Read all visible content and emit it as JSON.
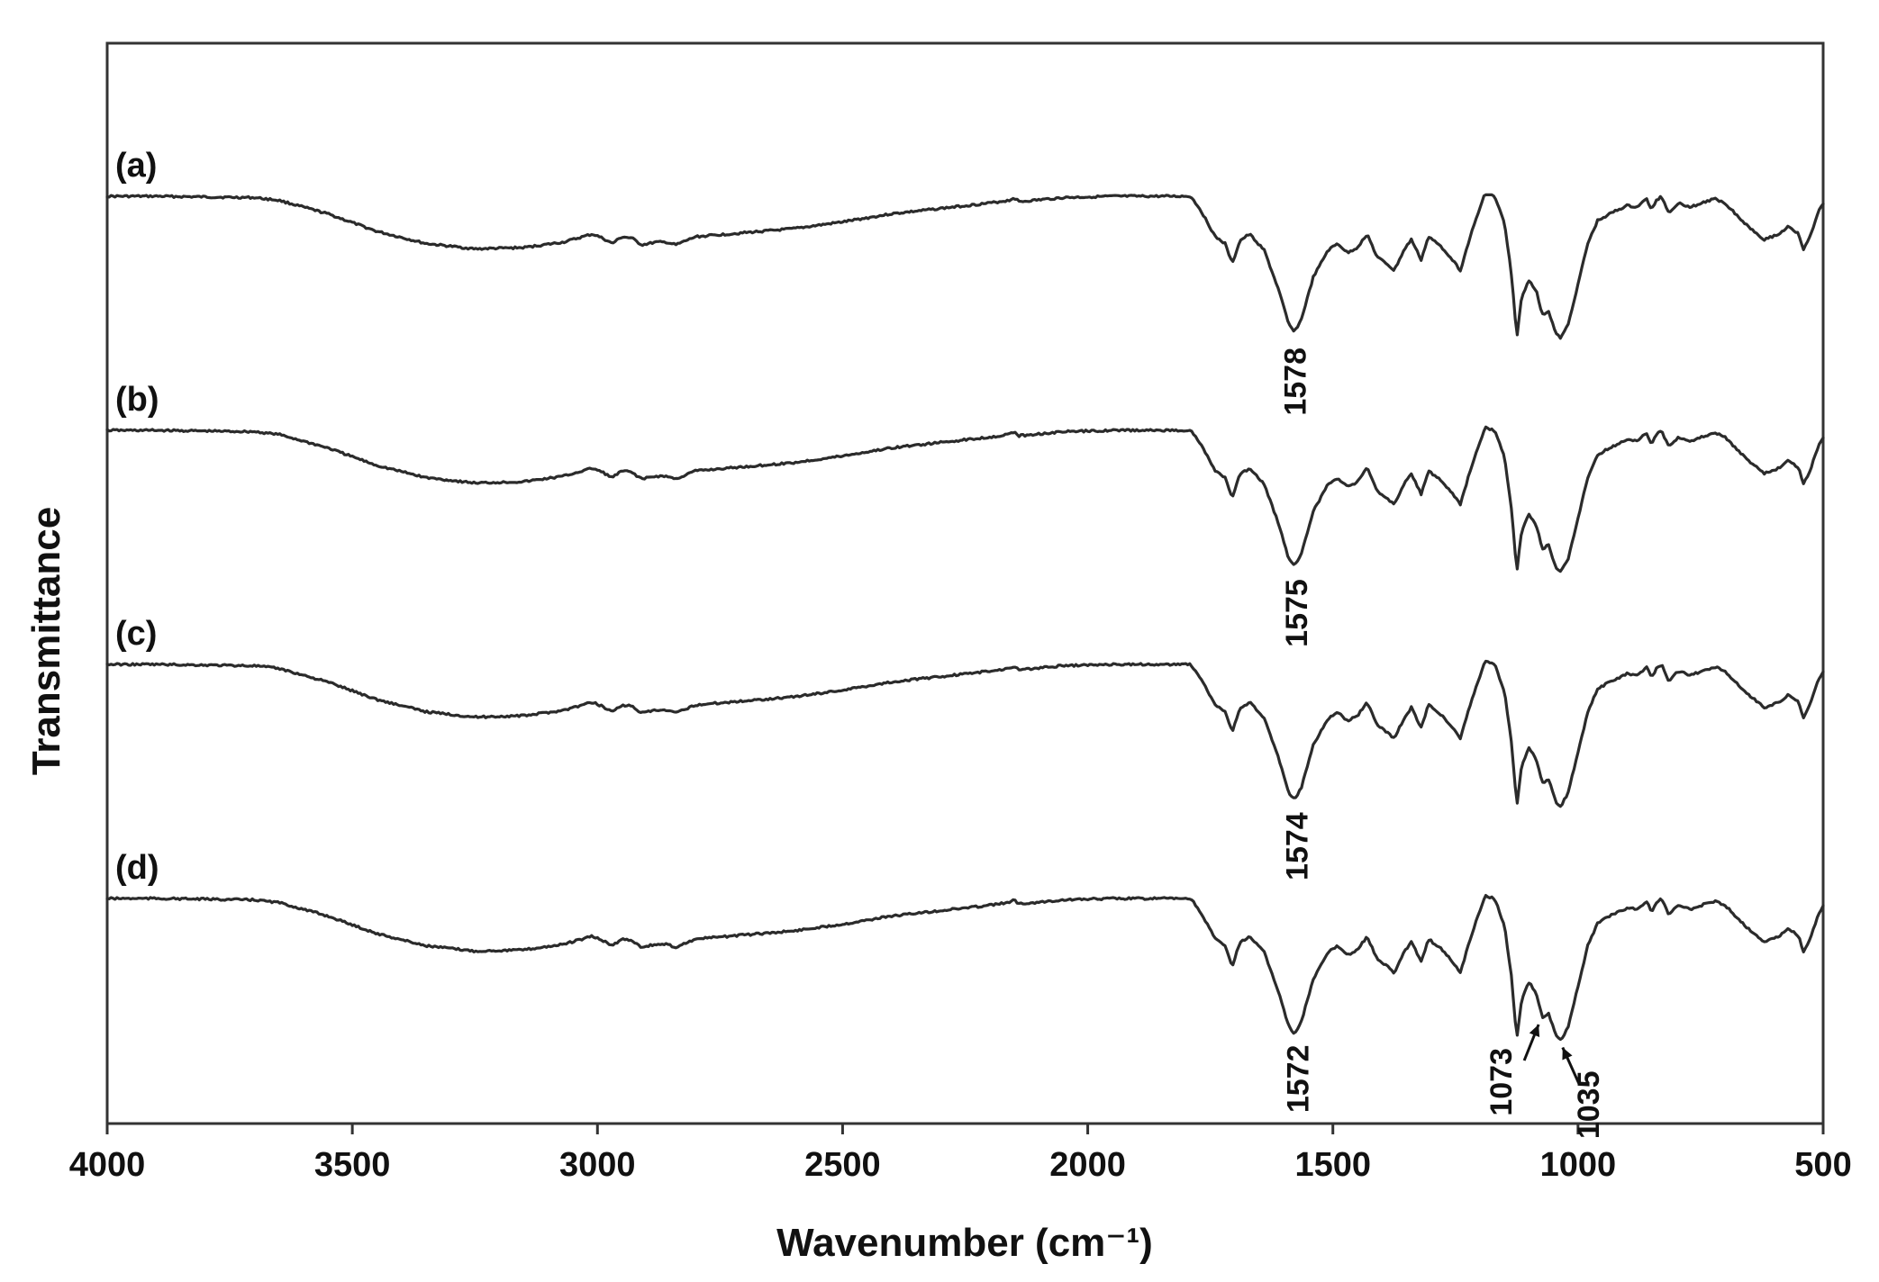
{
  "chart_data": {
    "type": "line",
    "title": "",
    "xlabel": "Wavenumber (cm⁻¹)",
    "ylabel": "Transmittance",
    "xlim": [
      4000,
      500
    ],
    "x_reversed": true,
    "xticks": [
      4000,
      3500,
      3000,
      2500,
      2000,
      1500,
      1000,
      500
    ],
    "y_ticks_shown": false,
    "grid": false,
    "legend": "none",
    "line_color": "#2b2b2b",
    "series": [
      {
        "name": "(a)",
        "baseline": 0,
        "peaks": [
          {
            "wavenumber": 1578,
            "label": "1578"
          }
        ]
      },
      {
        "name": "(b)",
        "baseline": 1,
        "peaks": [
          {
            "wavenumber": 1575,
            "label": "1575"
          }
        ]
      },
      {
        "name": "(c)",
        "baseline": 2,
        "peaks": [
          {
            "wavenumber": 1574,
            "label": "1574"
          }
        ]
      },
      {
        "name": "(d)",
        "baseline": 3,
        "peaks": [
          {
            "wavenumber": 1572,
            "label": "1572"
          },
          {
            "wavenumber": 1073,
            "label": "1073",
            "arrow": true
          },
          {
            "wavenumber": 1035,
            "label": "1035",
            "arrow": true
          }
        ]
      }
    ],
    "profile": [
      [
        4000,
        0.0
      ],
      [
        3900,
        0.0
      ],
      [
        3800,
        -0.005
      ],
      [
        3700,
        -0.01
      ],
      [
        3650,
        -0.03
      ],
      [
        3550,
        -0.13
      ],
      [
        3450,
        -0.26
      ],
      [
        3350,
        -0.35
      ],
      [
        3250,
        -0.39
      ],
      [
        3150,
        -0.38
      ],
      [
        3070,
        -0.34
      ],
      [
        3010,
        -0.28
      ],
      [
        2990,
        -0.31
      ],
      [
        2970,
        -0.35
      ],
      [
        2950,
        -0.3
      ],
      [
        2930,
        -0.31
      ],
      [
        2910,
        -0.36
      ],
      [
        2880,
        -0.34
      ],
      [
        2860,
        -0.34
      ],
      [
        2840,
        -0.36
      ],
      [
        2800,
        -0.3
      ],
      [
        2700,
        -0.27
      ],
      [
        2600,
        -0.24
      ],
      [
        2500,
        -0.19
      ],
      [
        2400,
        -0.13
      ],
      [
        2300,
        -0.09
      ],
      [
        2200,
        -0.05
      ],
      [
        2160,
        -0.03
      ],
      [
        2150,
        -0.01
      ],
      [
        2140,
        -0.04
      ],
      [
        2050,
        -0.01
      ],
      [
        1950,
        0.0
      ],
      [
        1850,
        0.0
      ],
      [
        1790,
        0.0
      ],
      [
        1770,
        -0.1
      ],
      [
        1740,
        -0.3
      ],
      [
        1720,
        -0.35
      ],
      [
        1705,
        -0.5
      ],
      [
        1690,
        -0.33
      ],
      [
        1670,
        -0.28
      ],
      [
        1640,
        -0.4
      ],
      [
        1610,
        -0.7
      ],
      [
        1590,
        -0.95
      ],
      [
        1578,
        -1.0
      ],
      [
        1565,
        -0.92
      ],
      [
        1540,
        -0.6
      ],
      [
        1510,
        -0.4
      ],
      [
        1490,
        -0.35
      ],
      [
        1470,
        -0.42
      ],
      [
        1450,
        -0.38
      ],
      [
        1430,
        -0.28
      ],
      [
        1410,
        -0.45
      ],
      [
        1390,
        -0.5
      ],
      [
        1375,
        -0.55
      ],
      [
        1355,
        -0.4
      ],
      [
        1340,
        -0.32
      ],
      [
        1320,
        -0.47
      ],
      [
        1305,
        -0.3
      ],
      [
        1280,
        -0.37
      ],
      [
        1260,
        -0.45
      ],
      [
        1240,
        -0.55
      ],
      [
        1220,
        -0.3
      ],
      [
        1190,
        0.02
      ],
      [
        1170,
        0.0
      ],
      [
        1150,
        -0.2
      ],
      [
        1135,
        -0.6
      ],
      [
        1125,
        -1.05
      ],
      [
        1115,
        -0.75
      ],
      [
        1100,
        -0.62
      ],
      [
        1085,
        -0.7
      ],
      [
        1073,
        -0.88
      ],
      [
        1060,
        -0.85
      ],
      [
        1045,
        -1.02
      ],
      [
        1035,
        -1.05
      ],
      [
        1020,
        -0.95
      ],
      [
        1000,
        -0.65
      ],
      [
        980,
        -0.35
      ],
      [
        960,
        -0.18
      ],
      [
        930,
        -0.12
      ],
      [
        900,
        -0.07
      ],
      [
        880,
        -0.08
      ],
      [
        860,
        -0.02
      ],
      [
        850,
        -0.1
      ],
      [
        840,
        -0.03
      ],
      [
        830,
        -0.0
      ],
      [
        815,
        -0.12
      ],
      [
        795,
        -0.05
      ],
      [
        770,
        -0.08
      ],
      [
        740,
        -0.04
      ],
      [
        720,
        -0.02
      ],
      [
        700,
        -0.05
      ],
      [
        660,
        -0.2
      ],
      [
        620,
        -0.32
      ],
      [
        590,
        -0.28
      ],
      [
        570,
        -0.22
      ],
      [
        550,
        -0.28
      ],
      [
        540,
        -0.4
      ],
      [
        525,
        -0.28
      ],
      [
        510,
        -0.12
      ],
      [
        500,
        -0.05
      ]
    ]
  }
}
